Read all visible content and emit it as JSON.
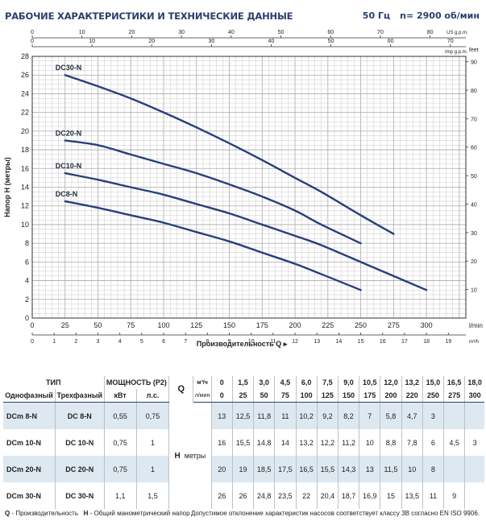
{
  "header": {
    "title": "РАБОЧИЕ ХАРАКТЕРИСТИКИ И ТЕХНИЧЕСКИЕ ДАННЫЕ",
    "freq": "50 Гц",
    "speed": "n= 2900 об/мин"
  },
  "chart_data": {
    "type": "line",
    "ylabel": "Напор H (метры)",
    "xlabel": "Производительность Q",
    "x_unit_lmin": "l/min",
    "x_unit_m3h": "m³/h",
    "top_unit_us": "US g.p.m.",
    "top_unit_imp": "Imp g.p.m.",
    "right_unit": "feet",
    "xlim": [
      0,
      330
    ],
    "ylim": [
      0,
      28
    ],
    "x_ticks_lmin": [
      0,
      25,
      50,
      75,
      100,
      125,
      150,
      175,
      200,
      225,
      250,
      275,
      300
    ],
    "x_ticks_m3h": [
      0,
      1,
      2,
      3,
      4,
      5,
      6,
      7,
      8,
      9,
      10,
      11,
      12,
      13,
      14,
      15,
      16,
      17,
      18,
      19
    ],
    "y_ticks": [
      0,
      2,
      4,
      6,
      8,
      10,
      12,
      14,
      16,
      18,
      20,
      22,
      24,
      26,
      28
    ],
    "feet_ticks": [
      10,
      20,
      30,
      40,
      50,
      60,
      70,
      80,
      90
    ],
    "us_gpm_ticks": [
      0,
      10,
      20,
      30,
      40,
      50,
      60,
      70,
      80
    ],
    "imp_gpm_ticks": [
      0,
      10,
      20,
      30,
      40,
      50,
      60,
      70
    ],
    "grid": true,
    "series": [
      {
        "name": "DC30-N",
        "x": [
          25,
          50,
          75,
          100,
          125,
          150,
          175,
          200,
          220,
          250,
          275
        ],
        "y": [
          26,
          24.8,
          23.5,
          22,
          20.4,
          18.7,
          16.9,
          15,
          13.5,
          11,
          9
        ]
      },
      {
        "name": "DC20-N",
        "x": [
          25,
          50,
          75,
          100,
          125,
          150,
          175,
          200,
          220,
          250
        ],
        "y": [
          19,
          18.5,
          17.5,
          16.5,
          15.5,
          14.3,
          13,
          11.5,
          10,
          8
        ]
      },
      {
        "name": "DC10-N",
        "x": [
          25,
          50,
          75,
          100,
          125,
          150,
          175,
          200,
          220,
          250,
          275,
          300
        ],
        "y": [
          15.5,
          14.8,
          14,
          13.2,
          12.2,
          11.2,
          10,
          8.8,
          7.8,
          6,
          4.5,
          3
        ]
      },
      {
        "name": "DC8-N",
        "x": [
          25,
          50,
          75,
          100,
          125,
          150,
          175,
          200,
          220,
          250
        ],
        "y": [
          12.5,
          11.8,
          11,
          10.2,
          9.2,
          8.2,
          7,
          5.8,
          4.7,
          3
        ]
      }
    ]
  },
  "table": {
    "tip_label": "ТИП",
    "power_label": "МОЩНОСТЬ (P2)",
    "q_label": "Q",
    "q_unit_m3h": "м³/ч",
    "q_unit_lmin": "л/мин",
    "col_single": "Однофазный",
    "col_three": "Трехфазный",
    "col_kw": "кВт",
    "col_hp": "л.с.",
    "m3h": [
      "0",
      "1,5",
      "3,0",
      "4,5",
      "6,0",
      "7,5",
      "9,0",
      "10,5",
      "12,0",
      "13,2",
      "15,0",
      "16,5",
      "18,0"
    ],
    "lmin": [
      "0",
      "25",
      "50",
      "75",
      "100",
      "125",
      "150",
      "175",
      "200",
      "220",
      "250",
      "275",
      "300"
    ],
    "h_label": "H",
    "h_unit": "метры",
    "rows": [
      {
        "single": "DCm  8-N",
        "three": "DC  8-N",
        "kw": "0,55",
        "hp": "0,75",
        "h": [
          "13",
          "12,5",
          "11,8",
          "11",
          "10,2",
          "9,2",
          "8,2",
          "7",
          "5,8",
          "4,7",
          "3",
          "",
          ""
        ]
      },
      {
        "single": "DCm 10-N",
        "three": "DC 10-N",
        "kw": "0,75",
        "hp": "1",
        "h": [
          "16",
          "15,5",
          "14,8",
          "14",
          "13,2",
          "12,2",
          "11,2",
          "10",
          "8,8",
          "7,8",
          "6",
          "4,5",
          "3"
        ]
      },
      {
        "single": "DCm 20-N",
        "three": "DC 20-N",
        "kw": "0,75",
        "hp": "1",
        "h": [
          "20",
          "19",
          "18,5",
          "17,5",
          "16,5",
          "15,5",
          "14,3",
          "13",
          "11,5",
          "10",
          "8",
          "",
          ""
        ]
      },
      {
        "single": "DCm 30-N",
        "three": "DC 30-N",
        "kw": "1,1",
        "hp": "1,5",
        "h": [
          "26",
          "26",
          "24,8",
          "23,5",
          "22",
          "20,4",
          "18,7",
          "16,9",
          "15",
          "13,5",
          "11",
          "9",
          ""
        ]
      }
    ]
  },
  "footer": {
    "q_key": "Q",
    "q_desc": " - Производительность",
    "h_key": "H",
    "h_desc": " - Общий манометрический напор",
    "note": "Допустимое отклонение характеристик насосов соответствует классу 3B согласно EN ISO 9906."
  },
  "colors": {
    "curve": "#27407a",
    "grid": "#c9c9c9",
    "axis": "#333333",
    "title": "#2a3f6e",
    "shade": "#dde8f1"
  }
}
